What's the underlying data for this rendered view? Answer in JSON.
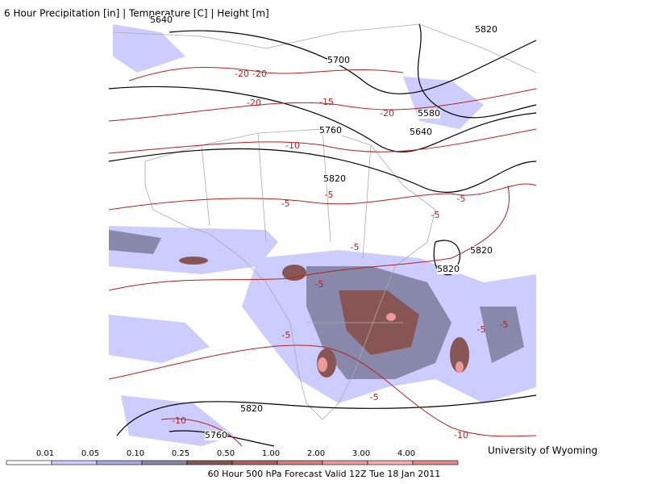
{
  "title": "6 Hour Precipitation [in] | Temperature [C] | Height [m]",
  "credit": "University of Wyoming",
  "footer": "60 Hour 500 hPa Forecast Valid 12Z Tue 18 Jan 2011",
  "legend": {
    "labels": [
      "0.01",
      "0.05",
      "0.10",
      "0.25",
      "0.50",
      "1.00",
      "2.00",
      "3.00",
      "4.00"
    ],
    "colors": [
      "#ffffff",
      "#ccccff",
      "#a8a8e0",
      "#8888aa",
      "#885555",
      "#b06060",
      "#d88080",
      "#ee9999",
      "#f4b0b0",
      "#e88888"
    ]
  },
  "height_labels": [
    "5640",
    "5700",
    "5580",
    "5640",
    "5760",
    "5820",
    "5820",
    "5820",
    "5820",
    "5820",
    "5760"
  ],
  "temperature_labels": [
    "-20",
    "-20",
    "-20",
    "-15",
    "-20",
    "-10",
    "-5",
    "-5",
    "-5",
    "-5",
    "-5",
    "-5",
    "-10",
    "-10",
    "-5",
    "-5",
    "-5",
    "-5"
  ]
}
